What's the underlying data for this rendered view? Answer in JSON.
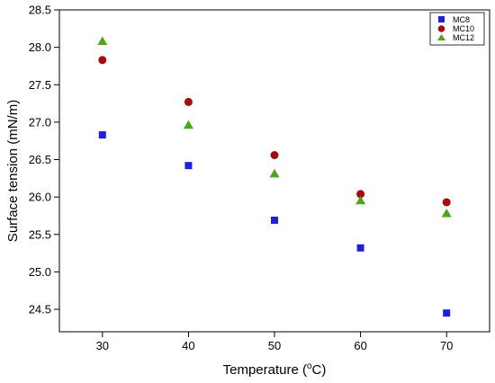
{
  "chart_data": {
    "type": "scatter",
    "title": "",
    "xlabel": "Temperature (°C)",
    "xlabel_main": "Temperature (",
    "xlabel_sup": "o",
    "xlabel_end": "C)",
    "ylabel": "Surface tension (mN/m)",
    "x": [
      30,
      40,
      50,
      60,
      70
    ],
    "xlim": [
      25,
      75
    ],
    "ylim": [
      24.2,
      28.5
    ],
    "x_ticks": [
      30,
      40,
      50,
      60,
      70
    ],
    "y_ticks": [
      24.5,
      25.0,
      25.5,
      26.0,
      26.5,
      27.0,
      27.5,
      28.0,
      28.5
    ],
    "y_tick_labels": [
      "24.5",
      "25.0",
      "25.5",
      "26.0",
      "26.5",
      "27.0",
      "27.5",
      "28.0",
      "28.5"
    ],
    "grid": false,
    "legend_position": "top-right",
    "series": [
      {
        "name": "MC8",
        "marker": "square",
        "color": "#1f1fe0",
        "values": [
          26.83,
          26.42,
          25.69,
          25.32,
          24.45
        ]
      },
      {
        "name": "MC10",
        "marker": "circle",
        "color": "#a50d0d",
        "values": [
          27.83,
          27.27,
          26.56,
          26.04,
          25.93
        ]
      },
      {
        "name": "MC12",
        "marker": "triangle",
        "color": "#4ca51a",
        "values": [
          28.08,
          26.96,
          26.31,
          25.95,
          25.78
        ]
      }
    ]
  }
}
